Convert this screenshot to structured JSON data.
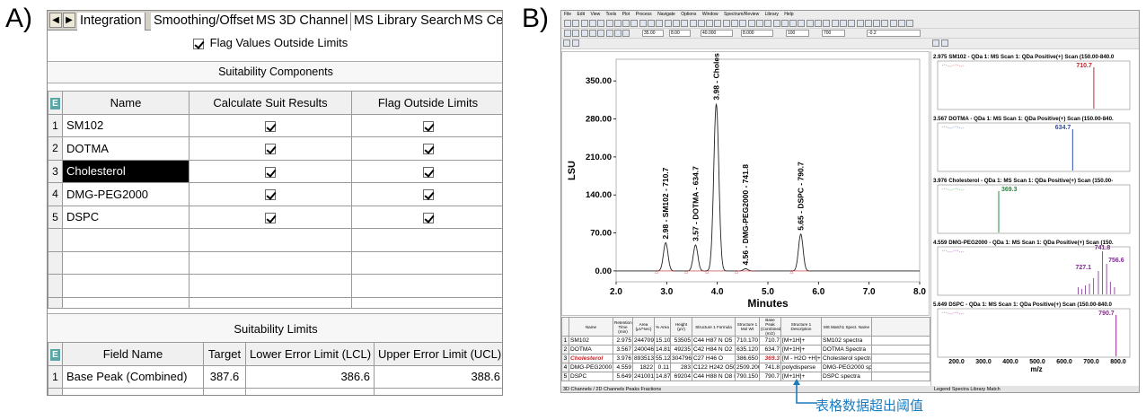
{
  "panel_labels": {
    "a": "A)",
    "b": "B)"
  },
  "panelA": {
    "tabs": [
      "Integration",
      "Smoothing/Offset",
      "MS 3D Channel",
      "MS Library Search",
      "MS Ce"
    ],
    "flag_checkbox_label": "Flag Values Outside Limits",
    "components_title": "Suitability Components",
    "components_headers": [
      "Name",
      "Calculate Suit Results",
      "Flag Outside Limits"
    ],
    "header_icon": "E",
    "components_rows": [
      {
        "n": "1",
        "name": "SM102",
        "calc": true,
        "flag": true
      },
      {
        "n": "2",
        "name": "DOTMA",
        "calc": true,
        "flag": true
      },
      {
        "n": "3",
        "name": "Cholesterol",
        "calc": true,
        "flag": true,
        "selected": true
      },
      {
        "n": "4",
        "name": "DMG-PEG2000",
        "calc": true,
        "flag": true
      },
      {
        "n": "5",
        "name": "DSPC",
        "calc": true,
        "flag": true
      }
    ],
    "limits_title": "Suitability Limits",
    "limits_headers": [
      "Field Name",
      "Target",
      "Lower Error Limit (LCL)",
      "Upper Error Limit (UCL)"
    ],
    "limits_rows": [
      {
        "n": "1",
        "field": "Base Peak  (Combined)",
        "target": "387.6",
        "lcl": "386.6",
        "ucl": "388.6"
      }
    ]
  },
  "panelB": {
    "menu": [
      "File",
      "Edit",
      "View",
      "Tools",
      "Plot",
      "Process",
      "Navigate",
      "Options",
      "Window",
      "Spectrum/Review",
      "Library",
      "Help"
    ],
    "toolbar_inputs": [
      "35.00",
      "8.00",
      "40.000",
      "8.000",
      "100",
      "700",
      "-0.2"
    ],
    "chart_data": {
      "type": "line",
      "xlabel": "Minutes",
      "ylabel": "LSU",
      "xlim": [
        2.0,
        8.0
      ],
      "ylim": [
        -20,
        390
      ],
      "x_ticks": [
        "2.0",
        "3.0",
        "4.0",
        "5.0",
        "6.0",
        "7.0",
        "8.0"
      ],
      "y_ticks": [
        "0.00",
        "70.00",
        "140.00",
        "210.00",
        "280.00",
        "350.00"
      ],
      "peaks": [
        {
          "x": 2.98,
          "y": 52,
          "label": "2.98 - SM102 - 710.7"
        },
        {
          "x": 3.57,
          "y": 48,
          "label": "3.57 - DOTMA - 634.7"
        },
        {
          "x": 3.98,
          "y": 308,
          "label": "3.98 - Choles"
        },
        {
          "x": 4.56,
          "y": 4,
          "label": "4.56 - DMG-PEG2000 - 741.8"
        },
        {
          "x": 5.65,
          "y": 68,
          "label": "5.65 - DSPC - 790.7"
        }
      ]
    },
    "table_headers": [
      "Name",
      "Retention Time (min)",
      "Area (µV*sec)",
      "% Area",
      "Height (µV)",
      "Structure 1 Formula",
      "Structure 1 Mol Wt",
      "Base Peak (Combined) (m/z)",
      "Structure 1 Description",
      "MS Match1 Spect. Name"
    ],
    "table_rows": [
      [
        "1",
        "SM102",
        "2.975",
        "244709",
        "15.10",
        "53505",
        "C44 H87 N O5",
        "710.170",
        "710.7",
        "[M+1H]+",
        "SM102 spectra"
      ],
      [
        "2",
        "DOTMA",
        "3.567",
        "240046",
        "14.81",
        "49235",
        "C42 H84 N O2",
        "635.120",
        "634.7",
        "[M+1H]+",
        "DOTMA Spectra"
      ],
      [
        "3",
        "Cholesterol",
        "3.976",
        "893513",
        "55.12",
        "304796",
        "C27 H46 O",
        "386.650",
        "369.3",
        "[M - H2O +H]+",
        "Cholesterol spectra"
      ],
      [
        "4",
        "DMG-PEG2000",
        "4.559",
        "1822",
        "0.11",
        "283",
        "C122 H242 O50",
        "2509.200",
        "741.8",
        "polydisperse",
        "DMG-PEG2000 spectra"
      ],
      [
        "5",
        "DSPC",
        "5.649",
        "241001",
        "14.87",
        "69204",
        "C44 H88 N O8 P",
        "790.150",
        "790.7",
        "[M+1H]+",
        "DSPC spectra"
      ]
    ],
    "spectra": [
      {
        "title": "2.975 SM102 - QDa 1: MS Scan 1: QDa Positive(+) Scan (150.00-840.0",
        "peak": "710.7",
        "color": "#c0282a"
      },
      {
        "title": "3.567 DOTMA - QDa 1: MS Scan 1: QDa Positive(+) Scan (150.00-840.",
        "peak": "634.7",
        "color": "#2a4fb0"
      },
      {
        "title": "3.976 Cholesterol - QDa 1: MS Scan 1: QDa Positive(+) Scan (150.00-",
        "peak": "369.3",
        "color": "#1f8a3a"
      },
      {
        "title": "4.559 DMG-PEG2000 - QDa 1: MS Scan 1: QDa Positive(+) Scan (150.",
        "peak": "727.1",
        "peak2": "741.8",
        "peak3": "756.6",
        "color": "#7b2a8c"
      },
      {
        "title": "5.649 DSPC - QDa 1: MS Scan 1: QDa Positive(+) Scan (150.00-840.0",
        "peak": "790.7",
        "color": "#8a2a8a"
      }
    ],
    "spectrum_axis": {
      "ticks": [
        "200.0",
        "300.0",
        "400.0",
        "500.0",
        "600.0",
        "700.0",
        "800.0"
      ],
      "label": "m/z"
    },
    "bottom_tabs_left": "3D Channels / 2D Channels  Peaks  Fractions",
    "bottom_tabs_right": "Legend  Spectra  Library Match",
    "annotation": "表格数据超出阈值"
  }
}
